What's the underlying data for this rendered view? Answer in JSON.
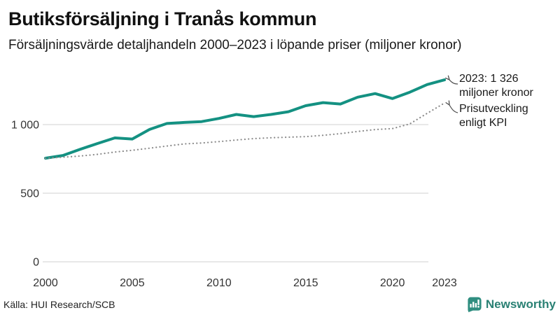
{
  "title": "Butiksförsäljning i Tranås kommun",
  "subtitle": "Försäljningsvärde detaljhandeln 2000–2023 i löpande priser (miljoner kronor)",
  "source": "Källa: HUI Research/SCB",
  "brand": {
    "name": "Newsworthy",
    "icon": "newsworthy-speech-bubble-bar-chart-icon",
    "icon_color": "#2f8e80",
    "wordmark_color": "#2a8174"
  },
  "colors": {
    "sales_line": "#149182",
    "kpi_line": "#8a8a8a",
    "grid": "#d9d9d9",
    "tick_text": "#333333",
    "annotation_text": "#1a1a1a",
    "arrow": "#4a4a4a"
  },
  "annotations": [
    {
      "lines": [
        "2023: 1 326",
        "miljoner kronor"
      ],
      "points_to": "sales-line-end"
    },
    {
      "lines": [
        "Prisutveckling",
        "enligt KPI"
      ],
      "points_to": "kpi-line-end"
    }
  ],
  "chart_data": {
    "type": "line",
    "title": "Butiksförsäljning i Tranås kommun",
    "subtitle": "Försäljningsvärde detaljhandeln 2000–2023 i löpande priser (miljoner kronor)",
    "x": [
      2000,
      2001,
      2002,
      2003,
      2004,
      2005,
      2006,
      2007,
      2008,
      2009,
      2010,
      2011,
      2012,
      2013,
      2014,
      2015,
      2016,
      2017,
      2018,
      2019,
      2020,
      2021,
      2022,
      2023
    ],
    "series": [
      {
        "name": "Butiksförsäljning i löpande priser (miljoner kronor)",
        "style": "solid",
        "color": "#149182",
        "values": [
          755,
          775,
          820,
          862,
          903,
          895,
          965,
          1008,
          1016,
          1022,
          1045,
          1074,
          1058,
          1074,
          1094,
          1138,
          1160,
          1150,
          1200,
          1226,
          1190,
          1236,
          1292,
          1326
        ]
      },
      {
        "name": "Prisutveckling enligt KPI",
        "style": "dotted",
        "color": "#8a8a8a",
        "values": [
          755,
          762,
          771,
          783,
          800,
          813,
          828,
          844,
          859,
          866,
          876,
          888,
          898,
          904,
          908,
          912,
          922,
          934,
          950,
          964,
          971,
          1005,
          1082,
          1157
        ]
      }
    ],
    "xticks": [
      2000,
      2005,
      2010,
      2015,
      2020,
      2023
    ],
    "xtick_labels": [
      "2000",
      "2005",
      "2010",
      "2015",
      "2020",
      "2023"
    ],
    "yticks": [
      0,
      500,
      1000
    ],
    "ytick_labels": [
      "0",
      "500",
      "1 000"
    ],
    "xlim": [
      2000,
      2023
    ],
    "ylim": [
      0,
      1530
    ],
    "grid": "horizontal",
    "legend_position": "annotations-right",
    "final_value_label": "2023: 1 326 miljoner kronor"
  }
}
